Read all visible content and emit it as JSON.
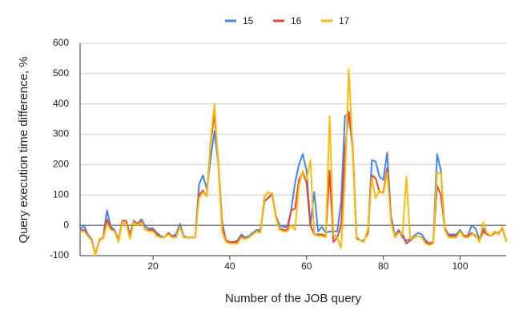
{
  "chart_data": {
    "type": "line",
    "xlabel": "Number of the JOB query",
    "ylabel": "Query execution time difference, %",
    "x": [
      1,
      2,
      3,
      4,
      5,
      6,
      7,
      8,
      9,
      10,
      11,
      12,
      13,
      14,
      15,
      16,
      17,
      18,
      19,
      20,
      21,
      22,
      23,
      24,
      25,
      26,
      27,
      28,
      29,
      30,
      31,
      32,
      33,
      34,
      35,
      36,
      37,
      38,
      39,
      40,
      41,
      42,
      43,
      44,
      45,
      46,
      47,
      48,
      49,
      50,
      51,
      52,
      53,
      54,
      55,
      56,
      57,
      58,
      59,
      60,
      61,
      62,
      63,
      64,
      65,
      66,
      67,
      68,
      69,
      70,
      71,
      72,
      73,
      74,
      75,
      76,
      77,
      78,
      79,
      80,
      81,
      82,
      83,
      84,
      85,
      86,
      87,
      88,
      89,
      90,
      91,
      92,
      93,
      94,
      95,
      96,
      97,
      98,
      99,
      100,
      101,
      102,
      103,
      104,
      105,
      106,
      107,
      108,
      109,
      110,
      111,
      112
    ],
    "series": [
      {
        "name": "15",
        "color": "#4285f4",
        "values": [
          -15,
          0,
          -30,
          -45,
          -95,
          -50,
          -40,
          50,
          -5,
          -15,
          -50,
          15,
          15,
          -30,
          15,
          5,
          20,
          -5,
          -10,
          -10,
          -25,
          -35,
          -40,
          -25,
          -35,
          -30,
          5,
          -35,
          -40,
          -40,
          -40,
          135,
          165,
          120,
          220,
          310,
          200,
          10,
          -50,
          -55,
          -55,
          -50,
          -30,
          -40,
          -35,
          -25,
          -15,
          -15,
          80,
          90,
          100,
          30,
          0,
          -5,
          -5,
          50,
          140,
          200,
          235,
          180,
          0,
          110,
          -20,
          -5,
          -25,
          -20,
          -20,
          -20,
          80,
          360,
          370,
          250,
          -40,
          -50,
          -50,
          -20,
          215,
          210,
          160,
          150,
          240,
          30,
          -35,
          -15,
          -40,
          -50,
          -45,
          -35,
          -25,
          -30,
          -50,
          -60,
          -55,
          235,
          180,
          -10,
          -30,
          -30,
          -30,
          -15,
          -35,
          -35,
          0,
          -10,
          -45,
          -10,
          -30,
          -35,
          -20,
          -30,
          -10,
          -50
        ]
      },
      {
        "name": "16",
        "color": "#ea4335",
        "values": [
          -20,
          -15,
          -35,
          -50,
          -95,
          -50,
          -40,
          20,
          -10,
          -20,
          -50,
          15,
          15,
          -40,
          15,
          0,
          15,
          -15,
          -15,
          -15,
          -30,
          -40,
          -40,
          -25,
          -40,
          -35,
          -5,
          -40,
          -40,
          -40,
          -40,
          100,
          115,
          95,
          270,
          370,
          210,
          0,
          -50,
          -55,
          -55,
          -55,
          -35,
          -45,
          -40,
          -30,
          -20,
          -20,
          80,
          90,
          105,
          30,
          -10,
          -15,
          -15,
          50,
          55,
          150,
          175,
          140,
          0,
          -30,
          -30,
          -30,
          -35,
          180,
          -55,
          -40,
          0,
          250,
          375,
          270,
          -40,
          -50,
          -50,
          -25,
          165,
          155,
          110,
          110,
          190,
          20,
          -40,
          -20,
          -30,
          -60,
          -50,
          -40,
          -35,
          -40,
          -55,
          -60,
          -55,
          130,
          100,
          -10,
          -35,
          -35,
          -35,
          -20,
          -35,
          -35,
          -25,
          -35,
          -50,
          -20,
          -30,
          -35,
          -25,
          -25,
          -10,
          -50
        ]
      },
      {
        "name": "17",
        "color": "#fbbc04",
        "values": [
          -20,
          -20,
          -35,
          -50,
          -100,
          -45,
          -45,
          5,
          -15,
          -20,
          -55,
          10,
          5,
          -45,
          10,
          0,
          10,
          -15,
          -20,
          -20,
          -35,
          -40,
          -40,
          -30,
          -40,
          -40,
          -5,
          -40,
          -40,
          -40,
          -40,
          90,
          110,
          95,
          280,
          400,
          200,
          -20,
          -55,
          -60,
          -60,
          -60,
          -40,
          -45,
          -40,
          -30,
          -20,
          -25,
          95,
          110,
          100,
          25,
          -15,
          -20,
          -20,
          0,
          -15,
          130,
          180,
          150,
          215,
          -30,
          -35,
          -35,
          -40,
          360,
          -30,
          -40,
          -75,
          150,
          515,
          250,
          -45,
          -50,
          -55,
          -10,
          155,
          90,
          115,
          105,
          175,
          10,
          -40,
          -25,
          -30,
          160,
          -45,
          -40,
          -35,
          -40,
          -60,
          -65,
          -60,
          175,
          170,
          -15,
          -40,
          -40,
          -40,
          -20,
          -40,
          -40,
          -30,
          -30,
          -55,
          10,
          -25,
          -35,
          -20,
          -30,
          -5,
          -55
        ]
      }
    ],
    "xlim": [
      1,
      112
    ],
    "xticks": [
      20,
      40,
      60,
      80,
      100
    ],
    "ylim": [
      -100,
      600
    ],
    "yticks": [
      -100,
      0,
      100,
      200,
      300,
      400,
      500,
      600
    ],
    "grid": true,
    "legend": "top"
  }
}
